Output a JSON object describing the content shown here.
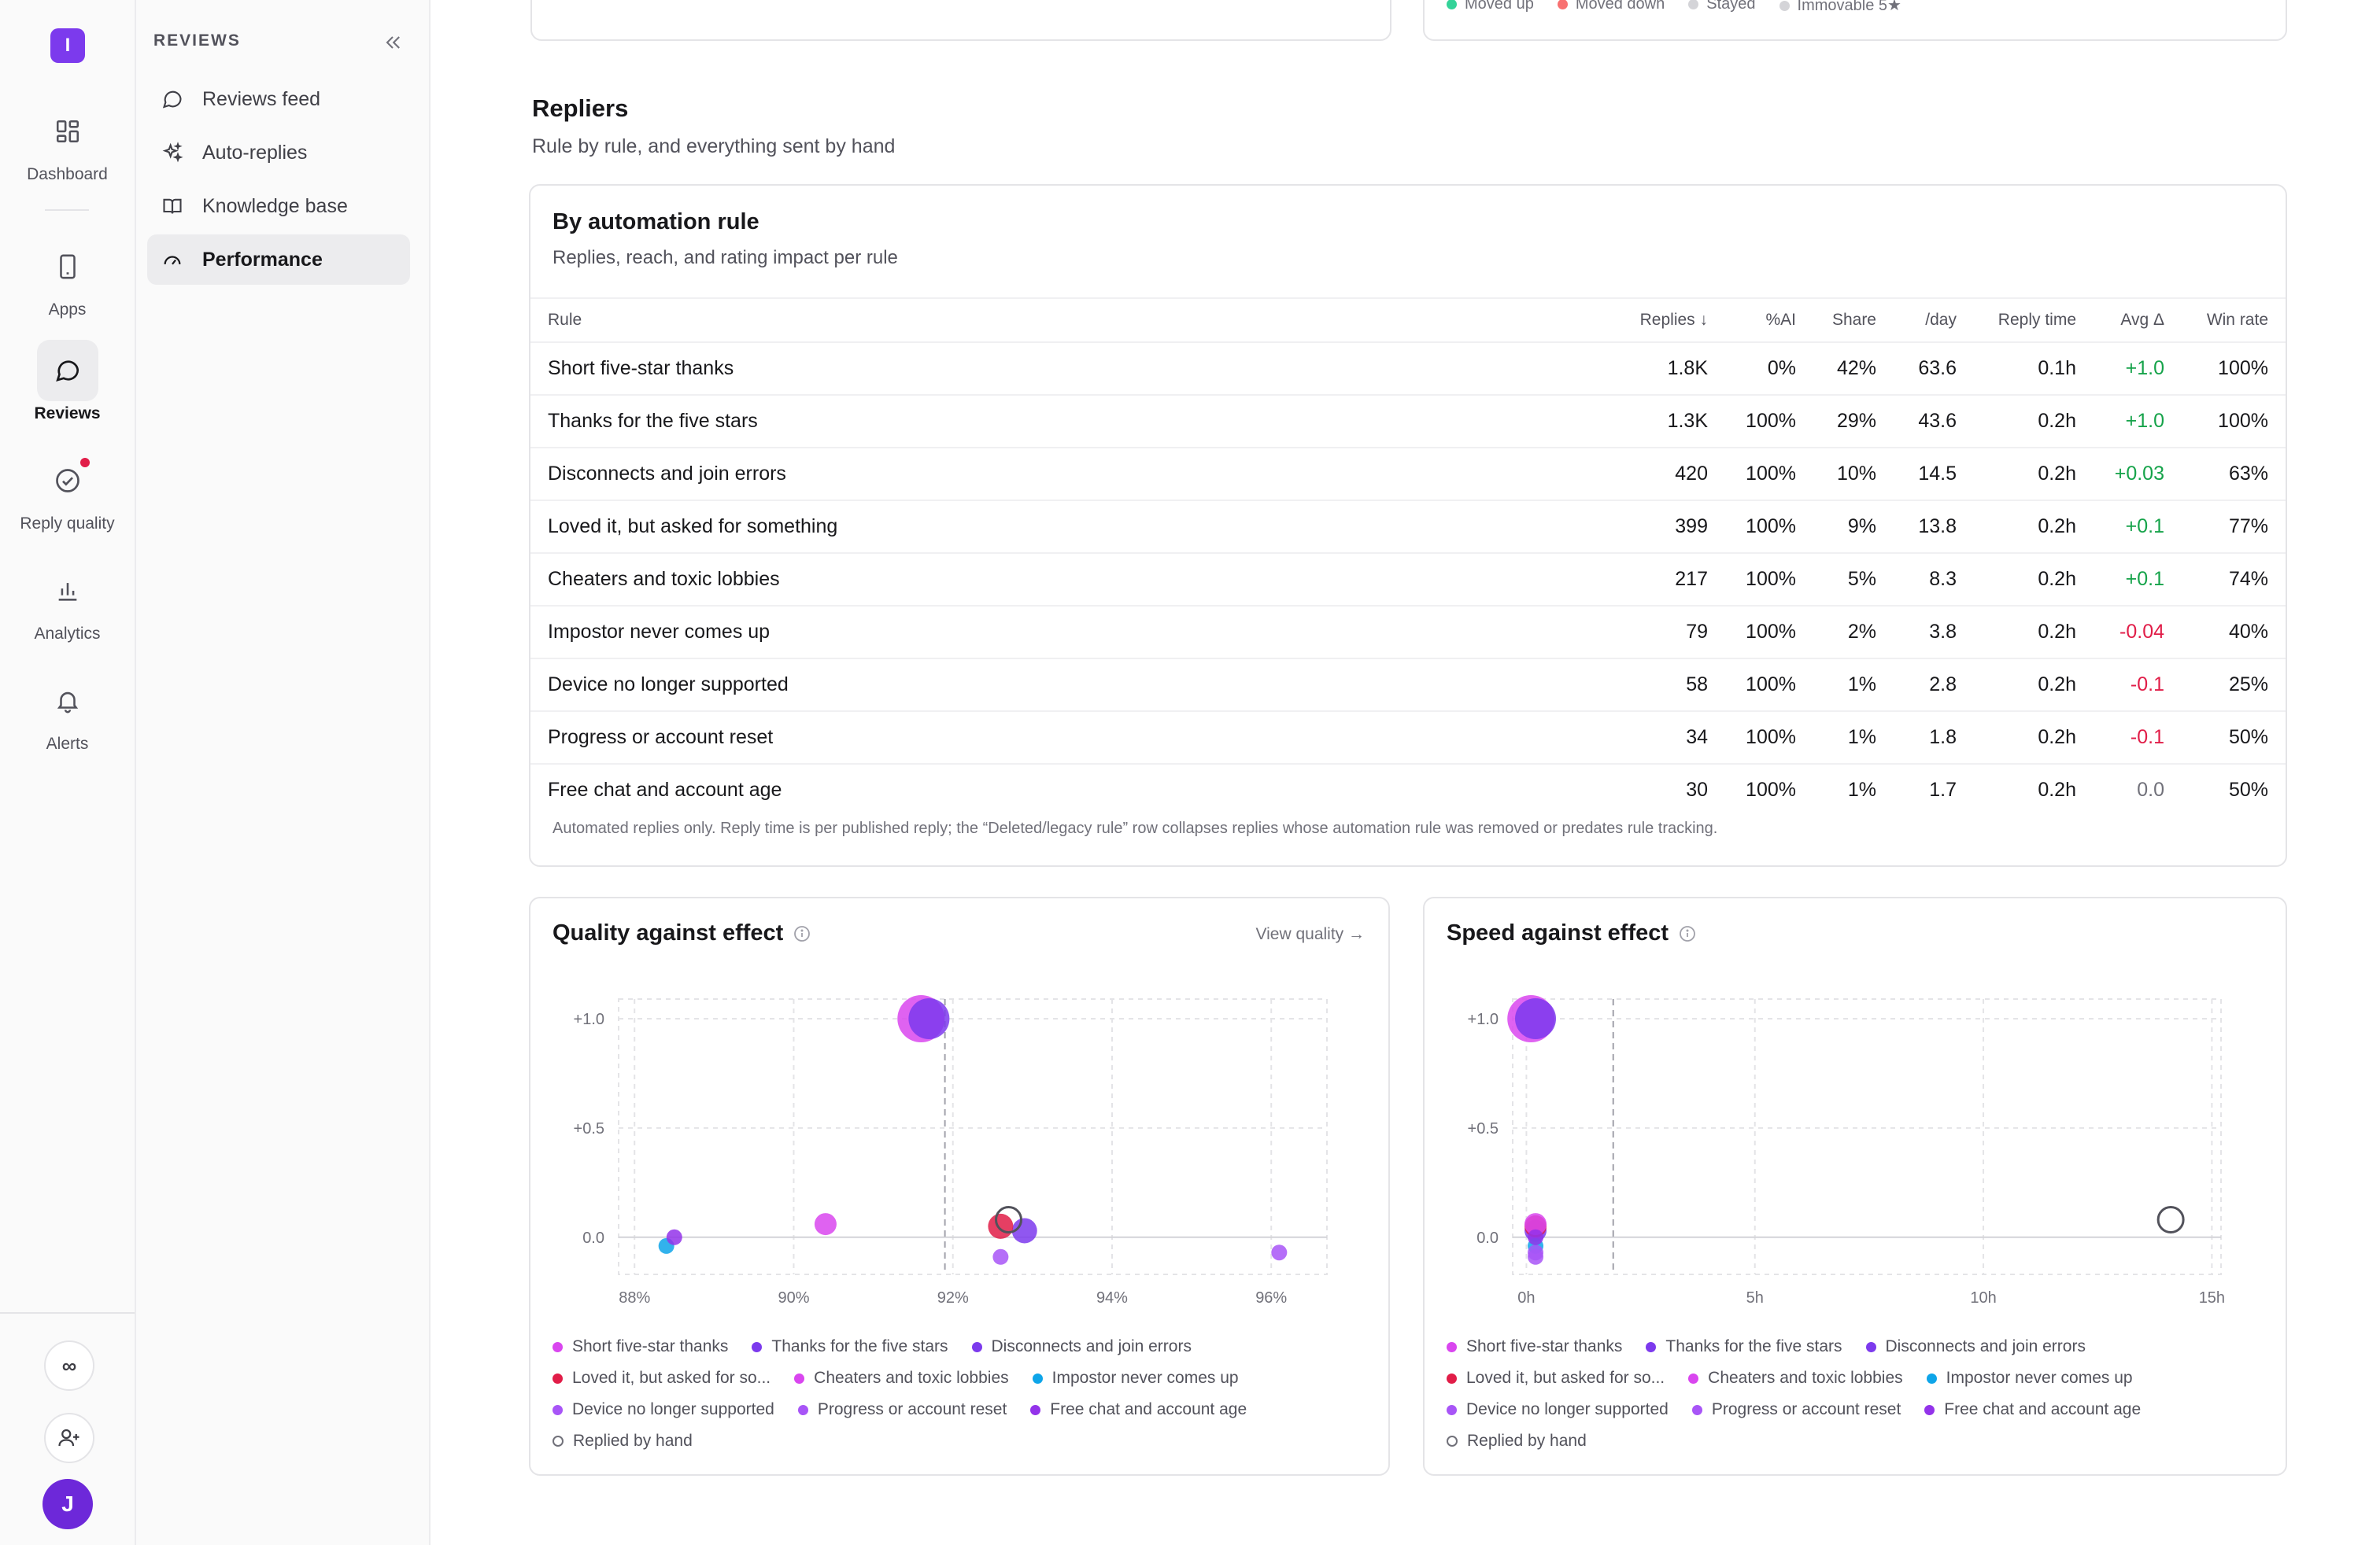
{
  "rail": {
    "logo": "I",
    "items": [
      {
        "label": "Dashboard",
        "icon": "dashboard-icon"
      },
      {
        "label": "Apps",
        "icon": "phone-icon"
      },
      {
        "label": "Reviews",
        "icon": "chat-bubble-icon"
      },
      {
        "label": "Reply quality",
        "icon": "check-circle-icon"
      },
      {
        "label": "Analytics",
        "icon": "bar-chart-icon"
      },
      {
        "label": "Alerts",
        "icon": "bell-icon"
      }
    ],
    "bottom": {
      "infinity": "∞",
      "avatar": "J"
    }
  },
  "sidebar": {
    "header": "REVIEWS",
    "items": [
      {
        "label": "Reviews feed",
        "icon": "message-circle-icon"
      },
      {
        "label": "Auto-replies",
        "icon": "sparkles-icon"
      },
      {
        "label": "Knowledge base",
        "icon": "book-icon"
      },
      {
        "label": "Performance",
        "icon": "gauge-icon"
      }
    ]
  },
  "top_legend": [
    "Moved up",
    "Moved down",
    "Stayed",
    "Immovable 5★"
  ],
  "section": {
    "title": "Repliers",
    "subtitle": "Rule by rule, and everything sent by hand"
  },
  "rules_table": {
    "title": "By automation rule",
    "subtitle": "Replies, reach, and rating impact per rule",
    "columns": [
      "Rule",
      "Replies ↓",
      "%AI",
      "Share",
      "/day",
      "Reply time",
      "Avg Δ",
      "Win rate"
    ],
    "rows": [
      [
        "Short five-star thanks",
        "1.8K",
        "0%",
        "42%",
        "63.6",
        "0.1h",
        "+1.0",
        "100%"
      ],
      [
        "Thanks for the five stars",
        "1.3K",
        "100%",
        "29%",
        "43.6",
        "0.2h",
        "+1.0",
        "100%"
      ],
      [
        "Disconnects and join errors",
        "420",
        "100%",
        "10%",
        "14.5",
        "0.2h",
        "+0.03",
        "63%"
      ],
      [
        "Loved it, but asked for something",
        "399",
        "100%",
        "9%",
        "13.8",
        "0.2h",
        "+0.1",
        "77%"
      ],
      [
        "Cheaters and toxic lobbies",
        "217",
        "100%",
        "5%",
        "8.3",
        "0.2h",
        "+0.1",
        "74%"
      ],
      [
        "Impostor never comes up",
        "79",
        "100%",
        "2%",
        "3.8",
        "0.2h",
        "-0.04",
        "40%"
      ],
      [
        "Device no longer supported",
        "58",
        "100%",
        "1%",
        "2.8",
        "0.2h",
        "-0.1",
        "25%"
      ],
      [
        "Progress or account reset",
        "34",
        "100%",
        "1%",
        "1.8",
        "0.2h",
        "-0.1",
        "50%"
      ],
      [
        "Free chat and account age",
        "30",
        "100%",
        "1%",
        "1.7",
        "0.2h",
        "0.0",
        "50%"
      ]
    ],
    "footnote": "Automated replies only. Reply time is per published reply; the “Deleted/legacy rule” row collapses replies whose automation rule was removed or predates rule tracking."
  },
  "legend_labels": [
    "Short five-star thanks",
    "Thanks for the five stars",
    "Disconnects and join errors",
    "Loved it, but asked for so...",
    "Cheaters and toxic lobbies",
    "Impostor never comes up",
    "Device no longer supported",
    "Progress or account reset",
    "Free chat and account age",
    "Replied by hand"
  ],
  "colors": {
    "short": "#d946ef",
    "thanks": "#7c3aed",
    "disconnects": "#7c3aed",
    "loved": "#e11d48",
    "cheaters": "#d946ef",
    "impostor": "#0ea5e9",
    "device": "#a855f7",
    "progress": "#a855f7",
    "freechat": "#9333ea",
    "hand": "#71717a"
  },
  "chart_data": [
    {
      "type": "scatter",
      "title": "Quality against effect",
      "link": "View quality →",
      "xlim": [
        87.8,
        96.7
      ],
      "ylim": [
        -0.17,
        1.09
      ],
      "xticks": [
        {
          "v": 88,
          "label": "88%"
        },
        {
          "v": 90,
          "label": "90%"
        },
        {
          "v": 92,
          "label": "92%"
        },
        {
          "v": 94,
          "label": "94%"
        },
        {
          "v": 96,
          "label": "96%"
        }
      ],
      "yticks": [
        {
          "v": 1.0,
          "label": "+1.0"
        },
        {
          "v": 0.5,
          "label": "+0.5"
        },
        {
          "v": 0.0,
          "label": "0.0"
        }
      ],
      "ref_x": 91.9,
      "series": [
        {
          "name": "Short five-star thanks",
          "x": 91.6,
          "y": 1.0,
          "r": 15,
          "color": "#d946ef"
        },
        {
          "name": "Thanks for the five stars",
          "x": 91.7,
          "y": 1.0,
          "r": 13,
          "color": "#7c3aed"
        },
        {
          "name": "Disconnects and join errors",
          "x": 92.9,
          "y": 0.03,
          "r": 8,
          "color": "#7c3aed"
        },
        {
          "name": "Loved it, but asked for something",
          "x": 92.6,
          "y": 0.05,
          "r": 8,
          "color": "#e11d48"
        },
        {
          "name": "Cheaters and toxic lobbies",
          "x": 90.4,
          "y": 0.06,
          "r": 7,
          "color": "#d946ef"
        },
        {
          "name": "Impostor never comes up",
          "x": 88.4,
          "y": -0.04,
          "r": 5,
          "color": "#0ea5e9"
        },
        {
          "name": "Device no longer supported",
          "x": 96.1,
          "y": -0.07,
          "r": 5,
          "color": "#a855f7"
        },
        {
          "name": "Progress or account reset",
          "x": 92.6,
          "y": -0.09,
          "r": 5,
          "color": "#a855f7"
        },
        {
          "name": "Free chat and account age",
          "x": 88.5,
          "y": 0.0,
          "r": 5,
          "color": "#9333ea"
        },
        {
          "name": "Replied by hand",
          "x": 92.7,
          "y": 0.08,
          "r": 8,
          "color": "#52525b",
          "hollow": true
        }
      ]
    },
    {
      "type": "scatter",
      "title": "Speed against effect",
      "xlim": [
        -0.3,
        15.2
      ],
      "ylim": [
        -0.17,
        1.09
      ],
      "xticks": [
        {
          "v": 0,
          "label": "0h"
        },
        {
          "v": 5,
          "label": "5h"
        },
        {
          "v": 10,
          "label": "10h"
        },
        {
          "v": 15,
          "label": "15h"
        }
      ],
      "yticks": [
        {
          "v": 1.0,
          "label": "+1.0"
        },
        {
          "v": 0.5,
          "label": "+0.5"
        },
        {
          "v": 0.0,
          "label": "0.0"
        }
      ],
      "ref_x": 1.9,
      "series": [
        {
          "name": "Short five-star thanks",
          "x": 0.1,
          "y": 1.0,
          "r": 15,
          "color": "#d946ef"
        },
        {
          "name": "Thanks for the five stars",
          "x": 0.2,
          "y": 1.0,
          "r": 13,
          "color": "#7c3aed"
        },
        {
          "name": "Disconnects and join errors",
          "x": 0.2,
          "y": 0.03,
          "r": 7,
          "color": "#7c3aed"
        },
        {
          "name": "Loved it, but asked for something",
          "x": 0.2,
          "y": 0.05,
          "r": 7,
          "color": "#e11d48"
        },
        {
          "name": "Cheaters and toxic lobbies",
          "x": 0.2,
          "y": 0.06,
          "r": 7,
          "color": "#d946ef"
        },
        {
          "name": "Impostor never comes up",
          "x": 0.2,
          "y": -0.04,
          "r": 5,
          "color": "#0ea5e9"
        },
        {
          "name": "Device no longer supported",
          "x": 0.2,
          "y": -0.07,
          "r": 5,
          "color": "#a855f7"
        },
        {
          "name": "Progress or account reset",
          "x": 0.2,
          "y": -0.09,
          "r": 5,
          "color": "#a855f7"
        },
        {
          "name": "Free chat and account age",
          "x": 0.2,
          "y": 0.0,
          "r": 5,
          "color": "#9333ea"
        },
        {
          "name": "Replied by hand",
          "x": 14.1,
          "y": 0.08,
          "r": 8,
          "color": "#52525b",
          "hollow": true
        }
      ]
    }
  ]
}
